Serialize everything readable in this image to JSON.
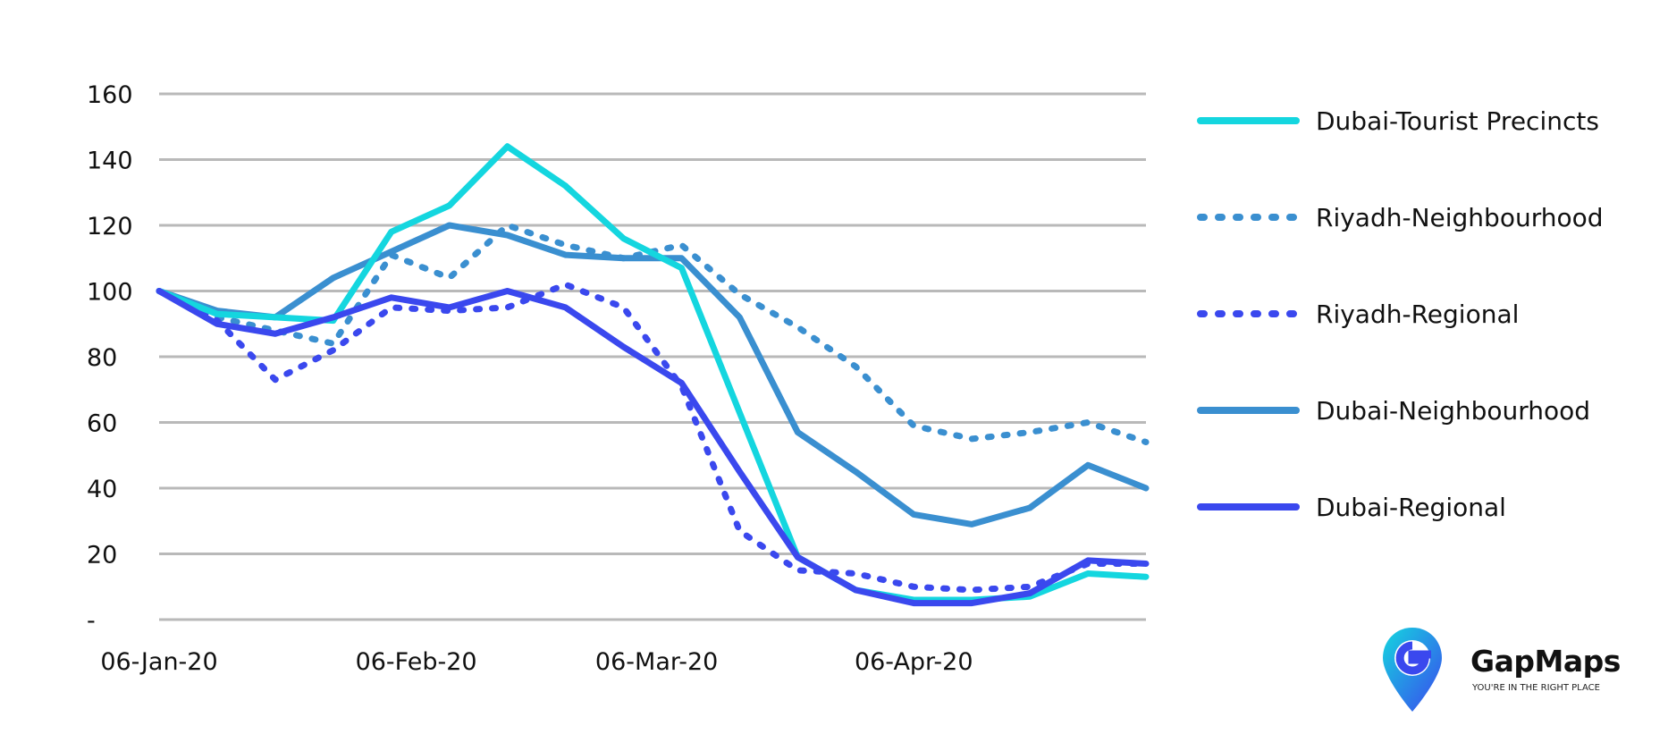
{
  "chart_data": {
    "type": "line",
    "title": "",
    "xlabel": "",
    "ylabel": "",
    "ylim": [
      0,
      160
    ],
    "y_ticks": [
      0,
      20,
      40,
      60,
      80,
      100,
      120,
      140,
      160
    ],
    "y_tick_labels": [
      "-",
      "20",
      "40",
      "60",
      "80",
      "100",
      "120",
      "140",
      "160"
    ],
    "x_tick_labels": [
      "06-Jan-20",
      "06-Feb-20",
      "06-Mar-20",
      "06-Apr-20"
    ],
    "x_tick_dates": [
      "2020-01-06",
      "2020-02-06",
      "2020-03-06",
      "2020-04-06"
    ],
    "x": [
      "2020-01-06",
      "2020-01-13",
      "2020-01-20",
      "2020-01-27",
      "2020-02-03",
      "2020-02-10",
      "2020-02-17",
      "2020-02-24",
      "2020-03-02",
      "2020-03-09",
      "2020-03-16",
      "2020-03-23",
      "2020-03-30",
      "2020-04-06",
      "2020-04-13",
      "2020-04-20",
      "2020-04-27",
      "2020-05-04"
    ],
    "grid": true,
    "legend_position": "right",
    "series": [
      {
        "name": "Dubai-Tourist Precincts",
        "color": "#14d6df",
        "style": "solid",
        "values": [
          100,
          93,
          92,
          91,
          118,
          126,
          144,
          132,
          116,
          107,
          63,
          19,
          9,
          6,
          6,
          7,
          14,
          13
        ]
      },
      {
        "name": "Riyadh-Neighbourhood",
        "color": "#3a8fd0",
        "style": "dotted",
        "values": [
          100,
          92,
          88,
          84,
          111,
          104,
          120,
          114,
          110,
          114,
          99,
          89,
          77,
          59,
          55,
          57,
          60,
          54
        ]
      },
      {
        "name": "Riyadh-Regional",
        "color": "#3a48ee",
        "style": "dotted",
        "values": [
          100,
          91,
          73,
          82,
          95,
          94,
          95,
          102,
          95,
          71,
          27,
          15,
          14,
          10,
          9,
          10,
          17,
          17
        ]
      },
      {
        "name": "Dubai-Neighbourhood",
        "color": "#3a8fd0",
        "style": "solid",
        "values": [
          100,
          94,
          92,
          104,
          112,
          120,
          117,
          111,
          110,
          110,
          92,
          57,
          45,
          32,
          29,
          34,
          47,
          40
        ]
      },
      {
        "name": "Dubai-Regional",
        "color": "#3a48ee",
        "style": "solid",
        "values": [
          100,
          90,
          87,
          92,
          98,
          95,
          100,
          95,
          83,
          72,
          45,
          19,
          9,
          5,
          5,
          8,
          18,
          17
        ]
      }
    ]
  },
  "logo": {
    "name": "GapMaps",
    "tagline": "YOU'RE IN THE RIGHT PLACE",
    "colors": {
      "primary": "#3a48ee",
      "secondary": "#14d6df"
    }
  }
}
